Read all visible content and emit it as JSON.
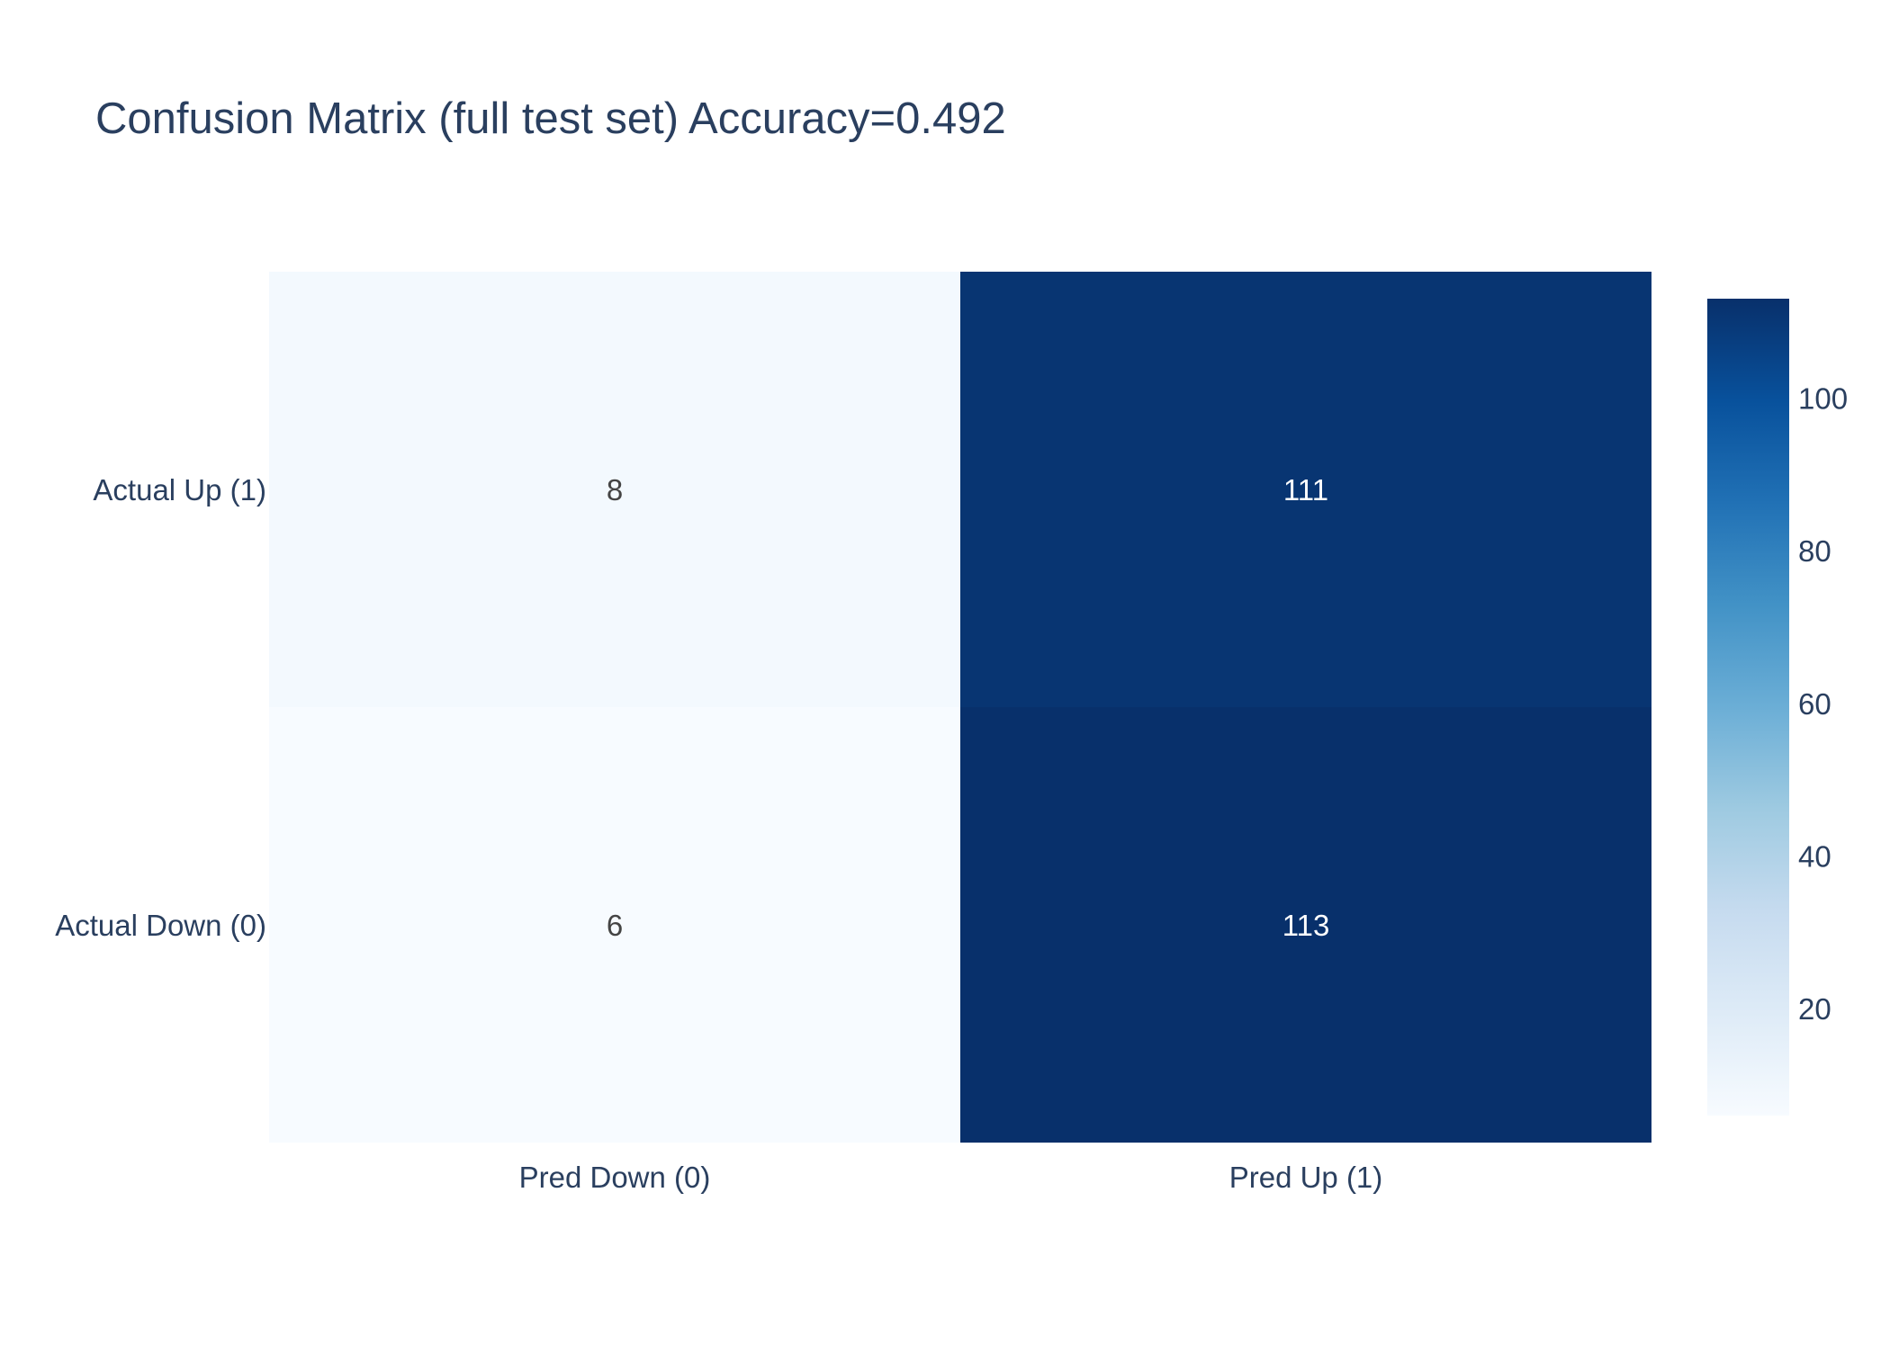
{
  "chart_data": {
    "type": "heatmap",
    "title": "Confusion Matrix (full test set)  Accuracy=0.492",
    "x_categories": [
      "Pred Down (0)",
      "Pred Up (1)"
    ],
    "y_categories": [
      "Actual Down (0)",
      "Actual Up (1)"
    ],
    "z": [
      [
        6,
        113
      ],
      [
        8,
        111
      ]
    ],
    "colorscale": "Blues",
    "colorbar": {
      "range": [
        6,
        113
      ],
      "ticks": [
        20,
        40,
        60,
        80,
        100
      ],
      "tick_labels": [
        "20",
        "40",
        "60",
        "80",
        "100"
      ]
    },
    "annotations": [
      {
        "row": 0,
        "col": 0,
        "text": "6"
      },
      {
        "row": 0,
        "col": 1,
        "text": "113"
      },
      {
        "row": 1,
        "col": 0,
        "text": "8"
      },
      {
        "row": 1,
        "col": 1,
        "text": "111"
      }
    ]
  },
  "colors": {
    "text": "#2a3f5f",
    "annotation_dark": "#444444",
    "annotation_light": "#ffffff",
    "blues": [
      "#f7fbff",
      "#deebf7",
      "#c6dbef",
      "#9ecae1",
      "#6baed6",
      "#4292c6",
      "#2171b5",
      "#08519c",
      "#08306b"
    ]
  }
}
